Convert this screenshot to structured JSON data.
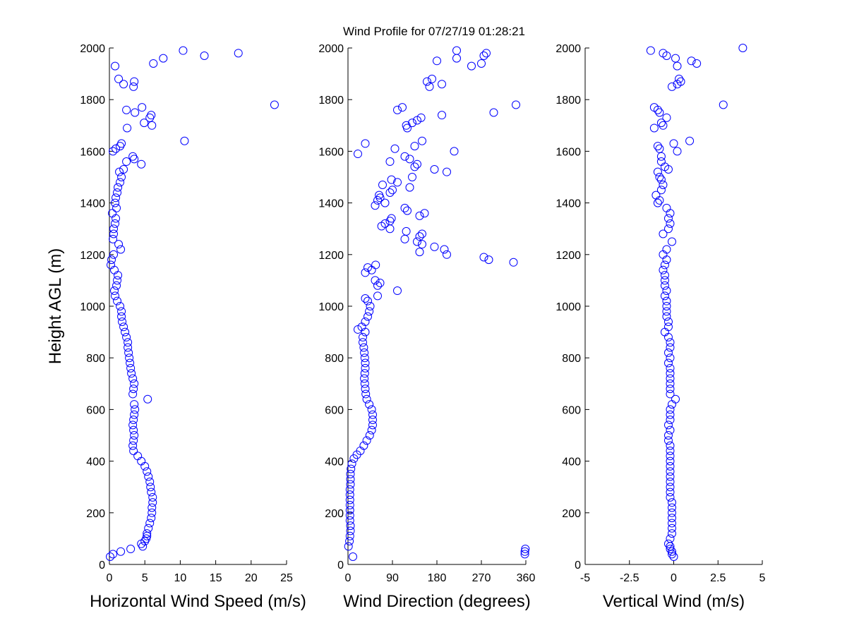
{
  "chart_data": [
    {
      "type": "scatter",
      "title": "Wind Profile for  07/27/19 01:28:21",
      "xlabel": "Horizontal Wind Speed (m/s)",
      "ylabel": "Height AGL (m)",
      "xlim": [
        0,
        25
      ],
      "ylim": [
        0,
        2000
      ],
      "xticks": [
        "0",
        "5",
        "10",
        "15",
        "20",
        "25"
      ],
      "xtick_values": [
        0,
        5,
        10,
        15,
        20,
        25
      ],
      "yticks": [
        "0",
        "200",
        "400",
        "600",
        "800",
        "1000",
        "1200",
        "1400",
        "1600",
        "1800",
        "2000"
      ],
      "marker_color": "#0000ff",
      "points": [
        [
          0.1,
          30
        ],
        [
          0.5,
          40
        ],
        [
          1.6,
          50
        ],
        [
          3.0,
          60
        ],
        [
          4.7,
          70
        ],
        [
          4.5,
          80
        ],
        [
          5.0,
          90
        ],
        [
          5.2,
          100
        ],
        [
          5.3,
          110
        ],
        [
          5.3,
          120
        ],
        [
          5.5,
          140
        ],
        [
          5.7,
          160
        ],
        [
          5.9,
          180
        ],
        [
          6.0,
          200
        ],
        [
          6.0,
          220
        ],
        [
          6.1,
          240
        ],
        [
          6.1,
          260
        ],
        [
          5.9,
          280
        ],
        [
          5.8,
          300
        ],
        [
          5.7,
          320
        ],
        [
          5.5,
          340
        ],
        [
          5.3,
          360
        ],
        [
          5.0,
          380
        ],
        [
          4.5,
          400
        ],
        [
          4.0,
          420
        ],
        [
          3.4,
          440
        ],
        [
          3.3,
          460
        ],
        [
          3.4,
          480
        ],
        [
          3.5,
          500
        ],
        [
          3.4,
          520
        ],
        [
          3.3,
          540
        ],
        [
          3.4,
          560
        ],
        [
          3.5,
          580
        ],
        [
          3.6,
          600
        ],
        [
          3.5,
          620
        ],
        [
          5.4,
          640
        ],
        [
          3.3,
          660
        ],
        [
          3.4,
          680
        ],
        [
          3.5,
          700
        ],
        [
          3.3,
          720
        ],
        [
          3.1,
          740
        ],
        [
          3.0,
          760
        ],
        [
          2.9,
          780
        ],
        [
          2.8,
          800
        ],
        [
          2.7,
          820
        ],
        [
          2.6,
          840
        ],
        [
          2.6,
          860
        ],
        [
          2.4,
          880
        ],
        [
          2.2,
          900
        ],
        [
          2.0,
          920
        ],
        [
          1.8,
          940
        ],
        [
          1.7,
          960
        ],
        [
          1.7,
          980
        ],
        [
          1.5,
          1000
        ],
        [
          1.1,
          1020
        ],
        [
          0.8,
          1040
        ],
        [
          0.7,
          1060
        ],
        [
          1.0,
          1080
        ],
        [
          1.1,
          1100
        ],
        [
          1.2,
          1120
        ],
        [
          0.7,
          1140
        ],
        [
          0.2,
          1160
        ],
        [
          0.3,
          1180
        ],
        [
          0.6,
          1200
        ],
        [
          1.6,
          1220
        ],
        [
          1.3,
          1240
        ],
        [
          0.5,
          1260
        ],
        [
          0.6,
          1280
        ],
        [
          0.6,
          1300
        ],
        [
          0.8,
          1320
        ],
        [
          0.9,
          1340
        ],
        [
          0.4,
          1360
        ],
        [
          1.0,
          1380
        ],
        [
          0.8,
          1400
        ],
        [
          0.9,
          1420
        ],
        [
          1.1,
          1440
        ],
        [
          1.2,
          1460
        ],
        [
          1.5,
          1480
        ],
        [
          1.7,
          1500
        ],
        [
          1.4,
          1520
        ],
        [
          2.0,
          1530
        ],
        [
          4.5,
          1550
        ],
        [
          2.4,
          1560
        ],
        [
          3.5,
          1570
        ],
        [
          3.3,
          1580
        ],
        [
          0.5,
          1600
        ],
        [
          0.9,
          1610
        ],
        [
          1.5,
          1620
        ],
        [
          1.7,
          1630
        ],
        [
          10.6,
          1640
        ],
        [
          2.5,
          1690
        ],
        [
          6.0,
          1700
        ],
        [
          4.9,
          1710
        ],
        [
          5.7,
          1730
        ],
        [
          5.9,
          1740
        ],
        [
          3.6,
          1750
        ],
        [
          2.4,
          1760
        ],
        [
          4.6,
          1770
        ],
        [
          23.3,
          1780
        ],
        [
          3.4,
          1850
        ],
        [
          2.0,
          1860
        ],
        [
          3.5,
          1870
        ],
        [
          1.3,
          1880
        ],
        [
          0.8,
          1930
        ],
        [
          6.2,
          1940
        ],
        [
          7.6,
          1960
        ],
        [
          13.4,
          1970
        ],
        [
          18.2,
          1980
        ],
        [
          10.4,
          1990
        ]
      ]
    },
    {
      "type": "scatter",
      "xlabel": "Wind Direction (degrees)",
      "xlim": [
        0,
        360
      ],
      "ylim": [
        0,
        2000
      ],
      "xticks": [
        "0",
        "90",
        "180",
        "270",
        "360"
      ],
      "xtick_values": [
        0,
        90,
        180,
        270,
        360
      ],
      "yticks": [
        "0",
        "200",
        "400",
        "600",
        "800",
        "1000",
        "1200",
        "1400",
        "1600",
        "1800",
        "2000"
      ],
      "marker_color": "#0000ff",
      "points": [
        [
          10,
          30
        ],
        [
          358,
          40
        ],
        [
          358,
          50
        ],
        [
          359,
          60
        ],
        [
          1,
          70
        ],
        [
          3,
          90
        ],
        [
          4,
          110
        ],
        [
          5,
          130
        ],
        [
          5,
          150
        ],
        [
          4,
          170
        ],
        [
          4,
          190
        ],
        [
          4,
          210
        ],
        [
          4,
          230
        ],
        [
          4,
          250
        ],
        [
          4,
          270
        ],
        [
          4,
          290
        ],
        [
          5,
          310
        ],
        [
          5,
          330
        ],
        [
          5,
          350
        ],
        [
          6,
          370
        ],
        [
          8,
          390
        ],
        [
          12,
          410
        ],
        [
          18,
          425
        ],
        [
          25,
          440
        ],
        [
          32,
          460
        ],
        [
          38,
          480
        ],
        [
          44,
          500
        ],
        [
          48,
          520
        ],
        [
          50,
          540
        ],
        [
          50,
          560
        ],
        [
          50,
          580
        ],
        [
          48,
          600
        ],
        [
          43,
          620
        ],
        [
          38,
          640
        ],
        [
          36,
          660
        ],
        [
          35,
          680
        ],
        [
          34,
          700
        ],
        [
          33,
          720
        ],
        [
          34,
          740
        ],
        [
          35,
          760
        ],
        [
          35,
          780
        ],
        [
          34,
          800
        ],
        [
          33,
          820
        ],
        [
          32,
          840
        ],
        [
          30,
          860
        ],
        [
          30,
          880
        ],
        [
          35,
          900
        ],
        [
          20,
          910
        ],
        [
          28,
          920
        ],
        [
          35,
          940
        ],
        [
          40,
          960
        ],
        [
          43,
          980
        ],
        [
          45,
          1000
        ],
        [
          40,
          1020
        ],
        [
          35,
          1030
        ],
        [
          60,
          1040
        ],
        [
          100,
          1060
        ],
        [
          60,
          1080
        ],
        [
          65,
          1090
        ],
        [
          55,
          1100
        ],
        [
          35,
          1130
        ],
        [
          48,
          1140
        ],
        [
          40,
          1150
        ],
        [
          56,
          1160
        ],
        [
          335,
          1170
        ],
        [
          285,
          1180
        ],
        [
          275,
          1190
        ],
        [
          200,
          1200
        ],
        [
          145,
          1210
        ],
        [
          195,
          1220
        ],
        [
          175,
          1230
        ],
        [
          150,
          1240
        ],
        [
          140,
          1250
        ],
        [
          115,
          1260
        ],
        [
          145,
          1270
        ],
        [
          150,
          1280
        ],
        [
          118,
          1290
        ],
        [
          85,
          1300
        ],
        [
          68,
          1310
        ],
        [
          75,
          1320
        ],
        [
          85,
          1330
        ],
        [
          88,
          1340
        ],
        [
          145,
          1350
        ],
        [
          155,
          1360
        ],
        [
          120,
          1370
        ],
        [
          115,
          1380
        ],
        [
          55,
          1390
        ],
        [
          75,
          1400
        ],
        [
          60,
          1410
        ],
        [
          65,
          1420
        ],
        [
          63,
          1430
        ],
        [
          85,
          1440
        ],
        [
          90,
          1450
        ],
        [
          125,
          1460
        ],
        [
          70,
          1470
        ],
        [
          100,
          1480
        ],
        [
          88,
          1490
        ],
        [
          130,
          1500
        ],
        [
          200,
          1520
        ],
        [
          175,
          1530
        ],
        [
          135,
          1540
        ],
        [
          140,
          1550
        ],
        [
          85,
          1560
        ],
        [
          125,
          1570
        ],
        [
          115,
          1580
        ],
        [
          20,
          1590
        ],
        [
          215,
          1600
        ],
        [
          95,
          1610
        ],
        [
          135,
          1620
        ],
        [
          35,
          1630
        ],
        [
          150,
          1640
        ],
        [
          120,
          1690
        ],
        [
          118,
          1700
        ],
        [
          130,
          1710
        ],
        [
          140,
          1720
        ],
        [
          148,
          1730
        ],
        [
          190,
          1740
        ],
        [
          295,
          1750
        ],
        [
          100,
          1760
        ],
        [
          110,
          1770
        ],
        [
          340,
          1780
        ],
        [
          165,
          1850
        ],
        [
          190,
          1860
        ],
        [
          160,
          1870
        ],
        [
          170,
          1880
        ],
        [
          250,
          1930
        ],
        [
          270,
          1940
        ],
        [
          180,
          1950
        ],
        [
          220,
          1960
        ],
        [
          275,
          1970
        ],
        [
          280,
          1980
        ],
        [
          220,
          1990
        ]
      ]
    },
    {
      "type": "scatter",
      "xlabel": "Vertical Wind (m/s)",
      "xlim": [
        -5,
        5
      ],
      "ylim": [
        0,
        2000
      ],
      "xticks": [
        "-5",
        "-2.5",
        "0",
        "2.5",
        "5"
      ],
      "xtick_values": [
        -5,
        -2.5,
        0,
        2.5,
        5
      ],
      "yticks": [
        "0",
        "200",
        "400",
        "600",
        "800",
        "1000",
        "1200",
        "1400",
        "1600",
        "1800",
        "2000"
      ],
      "marker_color": "#0000ff",
      "points": [
        [
          0,
          30
        ],
        [
          -0.1,
          40
        ],
        [
          -0.1,
          50
        ],
        [
          -0.2,
          60
        ],
        [
          -0.2,
          70
        ],
        [
          -0.3,
          80
        ],
        [
          -0.2,
          100
        ],
        [
          -0.1,
          120
        ],
        [
          -0.1,
          140
        ],
        [
          -0.1,
          160
        ],
        [
          -0.1,
          180
        ],
        [
          -0.1,
          200
        ],
        [
          -0.1,
          220
        ],
        [
          -0.1,
          240
        ],
        [
          -0.2,
          260
        ],
        [
          -0.2,
          280
        ],
        [
          -0.2,
          300
        ],
        [
          -0.2,
          320
        ],
        [
          -0.2,
          340
        ],
        [
          -0.2,
          360
        ],
        [
          -0.2,
          380
        ],
        [
          -0.2,
          400
        ],
        [
          -0.2,
          420
        ],
        [
          -0.2,
          440
        ],
        [
          -0.2,
          460
        ],
        [
          -0.3,
          480
        ],
        [
          -0.3,
          500
        ],
        [
          -0.2,
          520
        ],
        [
          -0.3,
          540
        ],
        [
          -0.2,
          560
        ],
        [
          -0.2,
          580
        ],
        [
          -0.2,
          600
        ],
        [
          -0.1,
          620
        ],
        [
          0.1,
          640
        ],
        [
          -0.2,
          660
        ],
        [
          -0.2,
          680
        ],
        [
          -0.2,
          700
        ],
        [
          -0.2,
          720
        ],
        [
          -0.2,
          740
        ],
        [
          -0.2,
          760
        ],
        [
          -0.3,
          780
        ],
        [
          -0.2,
          800
        ],
        [
          -0.3,
          820
        ],
        [
          -0.2,
          840
        ],
        [
          -0.2,
          860
        ],
        [
          -0.3,
          880
        ],
        [
          -0.5,
          900
        ],
        [
          -0.3,
          920
        ],
        [
          -0.3,
          940
        ],
        [
          -0.4,
          960
        ],
        [
          -0.4,
          980
        ],
        [
          -0.4,
          1000
        ],
        [
          -0.4,
          1020
        ],
        [
          -0.5,
          1040
        ],
        [
          -0.4,
          1060
        ],
        [
          -0.5,
          1080
        ],
        [
          -0.5,
          1100
        ],
        [
          -0.5,
          1120
        ],
        [
          -0.6,
          1140
        ],
        [
          -0.5,
          1160
        ],
        [
          -0.4,
          1180
        ],
        [
          -0.6,
          1200
        ],
        [
          -0.4,
          1220
        ],
        [
          -0.1,
          1250
        ],
        [
          -0.6,
          1280
        ],
        [
          -0.3,
          1300
        ],
        [
          -0.2,
          1320
        ],
        [
          -0.3,
          1340
        ],
        [
          -0.2,
          1360
        ],
        [
          -0.4,
          1380
        ],
        [
          -0.9,
          1400
        ],
        [
          -0.8,
          1410
        ],
        [
          -1.0,
          1430
        ],
        [
          -0.7,
          1450
        ],
        [
          -0.6,
          1470
        ],
        [
          -0.7,
          1490
        ],
        [
          -0.8,
          1500
        ],
        [
          -0.9,
          1520
        ],
        [
          -0.3,
          1530
        ],
        [
          -0.5,
          1540
        ],
        [
          -0.7,
          1560
        ],
        [
          -0.7,
          1580
        ],
        [
          0.2,
          1600
        ],
        [
          -0.8,
          1610
        ],
        [
          -0.9,
          1620
        ],
        [
          0,
          1630
        ],
        [
          0.9,
          1640
        ],
        [
          -1.1,
          1690
        ],
        [
          -0.6,
          1700
        ],
        [
          -0.7,
          1710
        ],
        [
          -0.4,
          1730
        ],
        [
          -0.8,
          1750
        ],
        [
          -0.9,
          1760
        ],
        [
          -1.1,
          1770
        ],
        [
          2.8,
          1780
        ],
        [
          -0.1,
          1850
        ],
        [
          0.2,
          1860
        ],
        [
          0.4,
          1870
        ],
        [
          0.3,
          1880
        ],
        [
          0.2,
          1930
        ],
        [
          1.3,
          1940
        ],
        [
          1.0,
          1950
        ],
        [
          0.1,
          1960
        ],
        [
          -0.4,
          1970
        ],
        [
          -0.6,
          1980
        ],
        [
          -1.3,
          1990
        ],
        [
          3.9,
          2000
        ]
      ]
    }
  ]
}
